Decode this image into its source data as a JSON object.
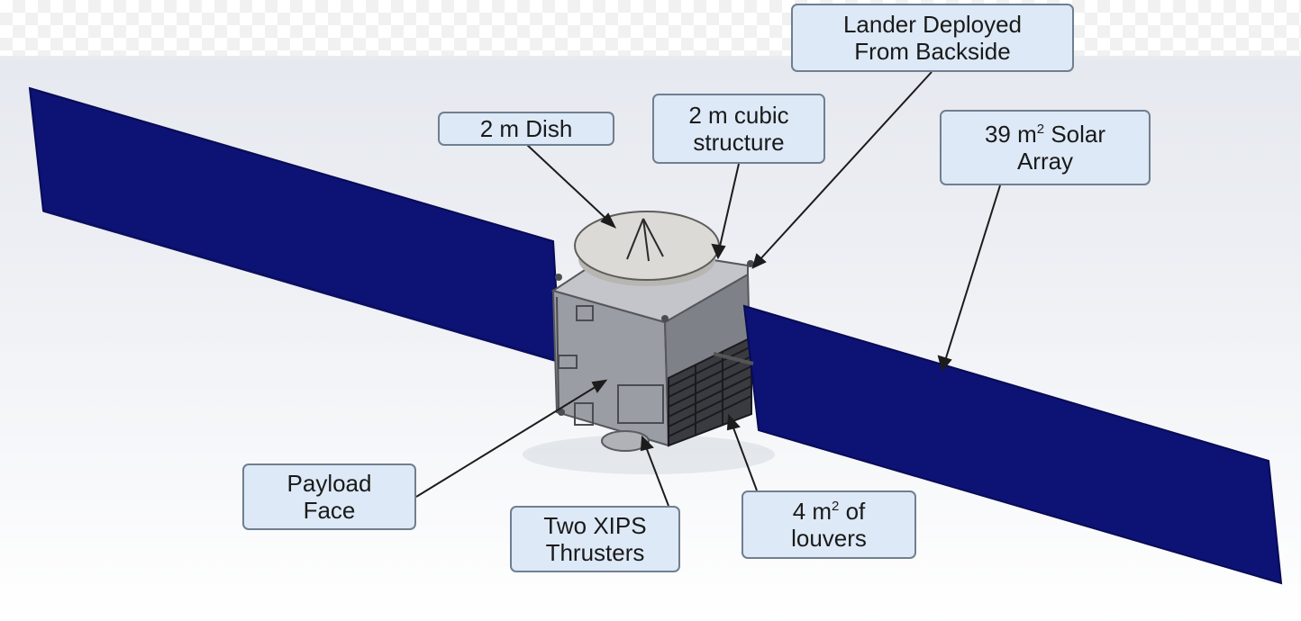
{
  "callouts": {
    "lander": {
      "line1": "Lander Deployed",
      "line2": "From Backside"
    },
    "dish": {
      "line1": "2 m Dish"
    },
    "cubic": {
      "line1": "2 m cubic",
      "line2": "structure"
    },
    "solar": {
      "line1_prefix": "39 m",
      "line1_sup": "2",
      "line1_suffix": " Solar",
      "line2": "Array"
    },
    "payload": {
      "line1": "Payload",
      "line2": "Face"
    },
    "xips": {
      "line1": "Two XIPS",
      "line2": "Thrusters"
    },
    "louvers": {
      "line1_prefix": "4 m",
      "line1_sup": "2",
      "line1_suffix": " of",
      "line2": "louvers"
    }
  },
  "colors": {
    "solar_panel": "#0d1275",
    "bus_body": "#a6a8ae",
    "dish": "#dcdad6",
    "callout_fill": "#dde9f6",
    "callout_border": "#6f7f90"
  }
}
